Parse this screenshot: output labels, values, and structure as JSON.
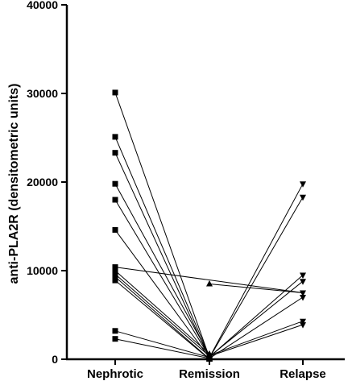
{
  "chart_data": {
    "type": "scatter",
    "ylabel": "anti-PLA2R (densitometric units)",
    "categories": [
      "Nephrotic",
      "Remission",
      "Relapse"
    ],
    "ylim": [
      0,
      40000
    ],
    "y_ticks": [
      0,
      10000,
      20000,
      30000,
      40000
    ],
    "grid": false,
    "marker_shapes": [
      "square",
      "triangle-up",
      "triangle-down"
    ],
    "colors": {
      "marks": "#000000",
      "axis": "#000000",
      "background": "#ffffff"
    },
    "points": {
      "Nephrotic": [
        30100,
        25100,
        23300,
        19800,
        18000,
        14600,
        10400,
        10000,
        9600,
        9300,
        8900,
        3200,
        2300
      ],
      "Remission": [
        8500,
        600,
        450,
        350,
        300,
        250,
        200,
        150,
        100,
        50,
        0
      ],
      "Relapse": [
        19800,
        18300,
        9500,
        8800,
        7500,
        7000,
        4300,
        3900
      ]
    },
    "paired_lines": [
      {
        "from": [
          "Nephrotic",
          30100
        ],
        "to": [
          "Remission",
          200
        ]
      },
      {
        "from": [
          "Nephrotic",
          25100
        ],
        "to": [
          "Remission",
          300
        ]
      },
      {
        "from": [
          "Nephrotic",
          23300
        ],
        "to": [
          "Remission",
          100
        ]
      },
      {
        "from": [
          "Nephrotic",
          19800
        ],
        "to": [
          "Remission",
          450
        ]
      },
      {
        "from": [
          "Nephrotic",
          18000
        ],
        "to": [
          "Remission",
          250
        ]
      },
      {
        "from": [
          "Nephrotic",
          14600
        ],
        "to": [
          "Remission",
          150
        ]
      },
      {
        "from": [
          "Nephrotic",
          10400
        ],
        "to": [
          "Relapse",
          7500
        ]
      },
      {
        "from": [
          "Nephrotic",
          10000
        ],
        "to": [
          "Remission",
          600
        ]
      },
      {
        "from": [
          "Nephrotic",
          9600
        ],
        "to": [
          "Remission",
          350
        ]
      },
      {
        "from": [
          "Nephrotic",
          9300
        ],
        "to": [
          "Remission",
          50
        ]
      },
      {
        "from": [
          "Nephrotic",
          8900
        ],
        "to": [
          "Remission",
          0
        ]
      },
      {
        "from": [
          "Nephrotic",
          3200
        ],
        "to": [
          "Remission",
          200
        ]
      },
      {
        "from": [
          "Nephrotic",
          2300
        ],
        "to": [
          "Remission",
          100
        ]
      },
      {
        "from": [
          "Remission",
          8500
        ],
        "to": [
          "Relapse",
          7500
        ]
      },
      {
        "from": [
          "Remission",
          200
        ],
        "to": [
          "Relapse",
          19800
        ]
      },
      {
        "from": [
          "Remission",
          150
        ],
        "to": [
          "Relapse",
          18300
        ]
      },
      {
        "from": [
          "Remission",
          250
        ],
        "to": [
          "Relapse",
          9500
        ]
      },
      {
        "from": [
          "Remission",
          300
        ],
        "to": [
          "Relapse",
          8800
        ]
      },
      {
        "from": [
          "Remission",
          100
        ],
        "to": [
          "Relapse",
          7000
        ]
      },
      {
        "from": [
          "Remission",
          450
        ],
        "to": [
          "Relapse",
          4300
        ]
      },
      {
        "from": [
          "Remission",
          350
        ],
        "to": [
          "Relapse",
          3900
        ]
      }
    ]
  }
}
